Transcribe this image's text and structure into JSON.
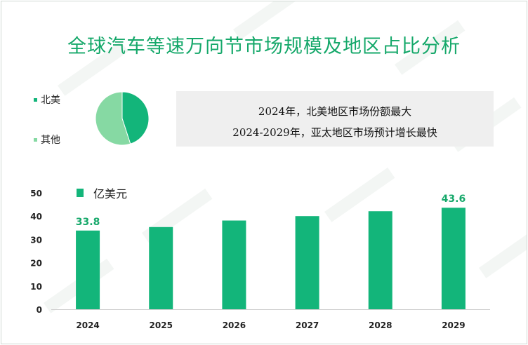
{
  "title": "全球汽车等速万向节市场规模及地区占比分析",
  "colors": {
    "accent": "#15a86a",
    "bar": "#13b57a",
    "pie_primary": "#13b57a",
    "pie_secondary": "#86d9a3",
    "label": "#15a86a"
  },
  "pie": {
    "legend": [
      {
        "label": "北美",
        "color": "#13b57a"
      },
      {
        "label": "其他",
        "color": "#86d9a3"
      }
    ]
  },
  "notes": {
    "line1": "2024年，北美地区市场份额最大",
    "line2": "2024-2029年，亚太地区市场预计增长最快"
  },
  "unit_legend": "亿美元",
  "chart_data": [
    {
      "type": "pie",
      "labels": [
        "北美",
        "其他"
      ],
      "values": [
        45,
        55
      ]
    },
    {
      "type": "bar",
      "categories": [
        "2024",
        "2025",
        "2026",
        "2027",
        "2028",
        "2029"
      ],
      "values": [
        33.8,
        35.3,
        38.1,
        40.0,
        42.1,
        43.6
      ],
      "data_labels": {
        "2024": "33.8",
        "2029": "43.6"
      },
      "ylim": [
        0,
        50
      ],
      "yticks": [
        0,
        10,
        20,
        30,
        40,
        50
      ],
      "series_name": "亿美元",
      "grid": false
    }
  ]
}
